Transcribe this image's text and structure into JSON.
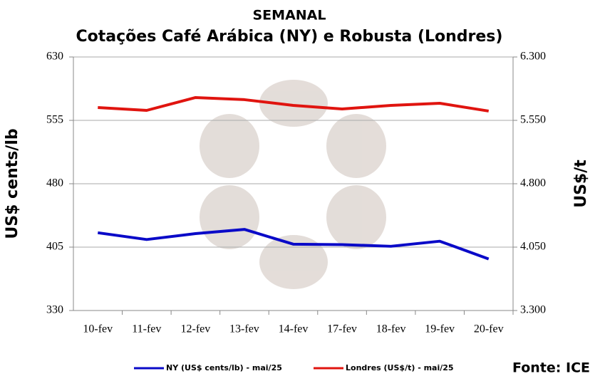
{
  "chart_data": {
    "type": "line",
    "title": "SEMANAL",
    "subtitle": "Cotações Café Arábica (NY) e Robusta (Londres)",
    "ylabel": "US$ cents/lb",
    "y2label": "US$/t",
    "source": "Fonte: ICE",
    "categories": [
      "10-fev",
      "11-fev",
      "12-fev",
      "13-fev",
      "14-fev",
      "17-fev",
      "18-fev",
      "19-fev",
      "20-fev"
    ],
    "series": [
      {
        "name": "NY (US$ cents/lb) - mai/25",
        "color": "#0a0ac8",
        "values": [
          422,
          414,
          421,
          426,
          408.5,
          408,
          406,
          412,
          391
        ]
      },
      {
        "name": "Londres (US$/t) - mai/25",
        "color": "#e0140f",
        "axis": "y2",
        "values": [
          5702,
          5668,
          5820,
          5795,
          5727,
          5685,
          5727,
          5752,
          5660
        ]
      }
    ],
    "ylim": [
      330,
      630
    ],
    "yticks": [
      330,
      405,
      480,
      555,
      630
    ],
    "y2lim": [
      3300,
      6300
    ],
    "y2ticks": [
      {
        "value": 3300,
        "label": "3.300"
      },
      {
        "value": 4050,
        "label": "4.050"
      },
      {
        "value": 4800,
        "label": "4.800"
      },
      {
        "value": 5550,
        "label": "5.550"
      },
      {
        "value": 6300,
        "label": "6.300"
      }
    ],
    "grid": true
  }
}
